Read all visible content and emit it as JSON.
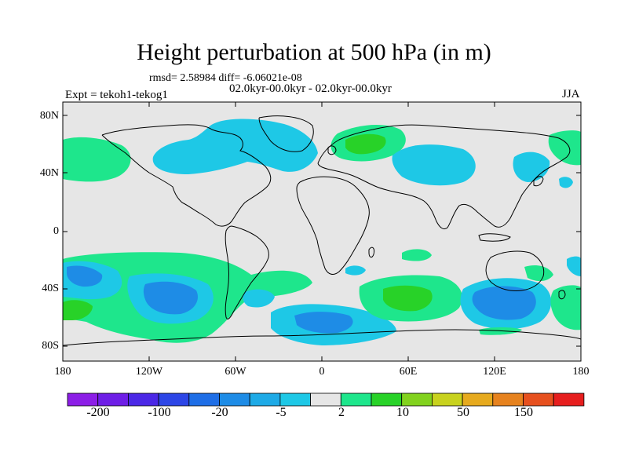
{
  "title": "Height perturbation at 500 hPa (in m)",
  "rmsd_line": "rmsd= 2.58984  diff= -6.06021e-08",
  "period_line": "02.0kyr-00.0kyr - 02.0kyr-00.0kyr",
  "experiment_line": "Expt = tekoh1-tekog1",
  "season": "JJA",
  "map": {
    "lat_ticks": [
      "80N",
      "40N",
      "0",
      "40S",
      "80S"
    ],
    "lon_ticks": [
      "180",
      "120W",
      "60W",
      "0",
      "60E",
      "120E",
      "180"
    ]
  },
  "colorbar": {
    "colors": [
      "#8c1ee6",
      "#6e1ee6",
      "#4b28e6",
      "#2d46e6",
      "#1e6ee6",
      "#1e8ce6",
      "#1eaae6",
      "#1ec8e6",
      "#e6e6e6",
      "#1ee68c",
      "#28d228",
      "#82d21e",
      "#c8d21e",
      "#e6aa1e",
      "#e6821e",
      "#e6501e",
      "#e61e1e"
    ],
    "labels": [
      "-200",
      "-100",
      "-20",
      "-5",
      "2",
      "10",
      "50",
      "150"
    ]
  },
  "colors": {
    "land_fill": "#e6e6e6",
    "ocean_fill": "#e6e6e6",
    "positive_weak": "#1ee68c",
    "positive_mid": "#28d228",
    "negative_weak": "#1ec8e6",
    "negative_mid": "#1e8ce6",
    "negative_strong": "#1e6ee6"
  }
}
